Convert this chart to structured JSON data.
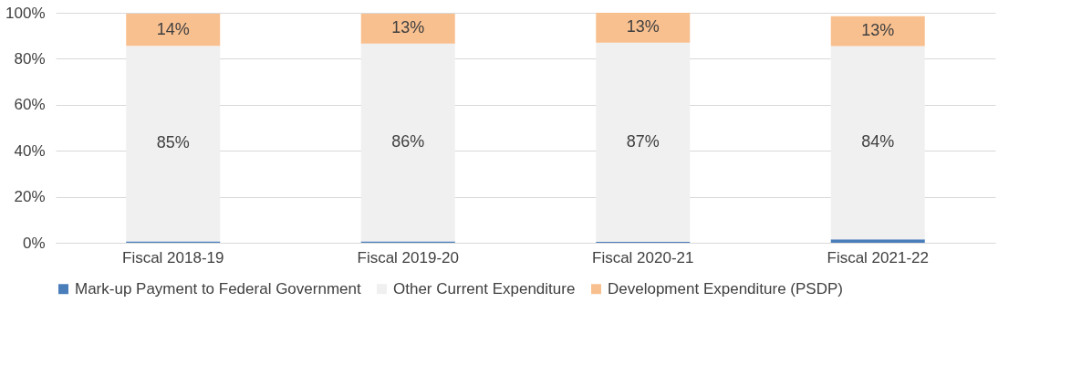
{
  "chart_data": {
    "type": "bar",
    "stacked": true,
    "categories": [
      "Fiscal 2018-19",
      "Fiscal 2019-20",
      "Fiscal 2020-21",
      "Fiscal 2021-22"
    ],
    "series": [
      {
        "name": "Mark-up Payment to Federal Government",
        "color": "#4a7ebb",
        "values": [
          0.6,
          0.6,
          0.4,
          1.5
        ]
      },
      {
        "name": "Other Current Expenditure",
        "color": "#f0f0f0",
        "values": [
          85,
          86,
          86.6,
          84
        ],
        "value_labels": [
          "85%",
          "86%",
          "87%",
          "84%"
        ]
      },
      {
        "name": "Development Expenditure (PSDP)",
        "color": "#f9c08f",
        "values": [
          14,
          13,
          13,
          13
        ],
        "value_labels": [
          "14%",
          "13%",
          "13%",
          "13%"
        ]
      }
    ],
    "ylim": [
      0,
      100
    ],
    "yticks": [
      {
        "value": 0,
        "label": "0%"
      },
      {
        "value": 20,
        "label": "20%"
      },
      {
        "value": 40,
        "label": "40%"
      },
      {
        "value": 60,
        "label": "60%"
      },
      {
        "value": 80,
        "label": "80%"
      },
      {
        "value": 100,
        "label": "100%"
      }
    ],
    "grid": "y",
    "legend": "bottom"
  }
}
